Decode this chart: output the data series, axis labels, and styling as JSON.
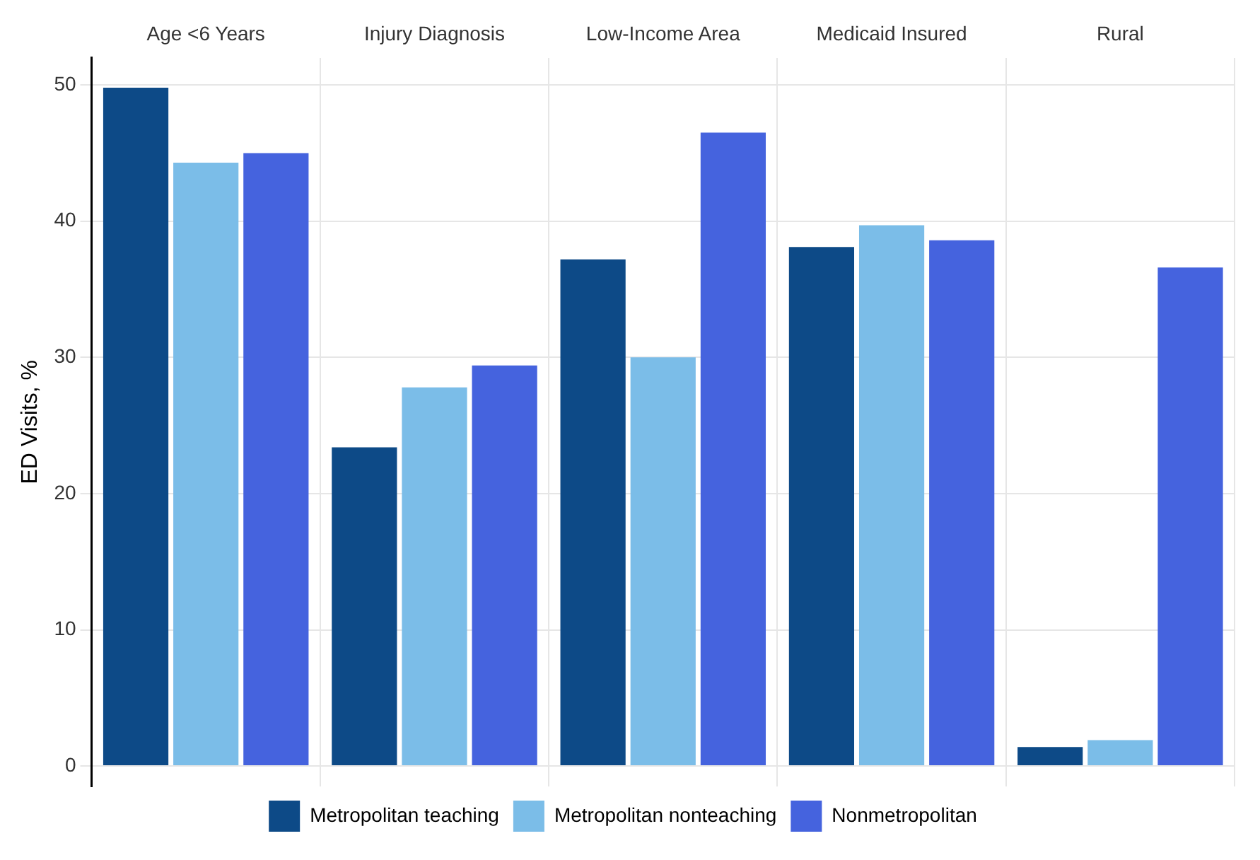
{
  "chart_data": {
    "type": "bar",
    "categories": [
      "Age <6 Years",
      "Injury Diagnosis",
      "Low-Income Area",
      "Medicaid Insured",
      "Rural"
    ],
    "series": [
      {
        "name": "Metropolitan teaching",
        "color": "#0d4a87",
        "values": [
          49.8,
          23.4,
          37.2,
          38.1,
          1.4
        ]
      },
      {
        "name": "Metropolitan nonteaching",
        "color": "#7bbde8",
        "values": [
          44.3,
          27.8,
          30.0,
          39.7,
          1.9
        ]
      },
      {
        "name": "Nonmetropolitan",
        "color": "#4563de",
        "values": [
          45.0,
          29.4,
          46.5,
          38.6,
          36.6
        ]
      }
    ],
    "ylabel": "ED Visits, %",
    "ylim": [
      -1.5,
      52
    ],
    "yticks": [
      0,
      10,
      20,
      30,
      40,
      50
    ],
    "grid": true,
    "legend": "bottom"
  }
}
